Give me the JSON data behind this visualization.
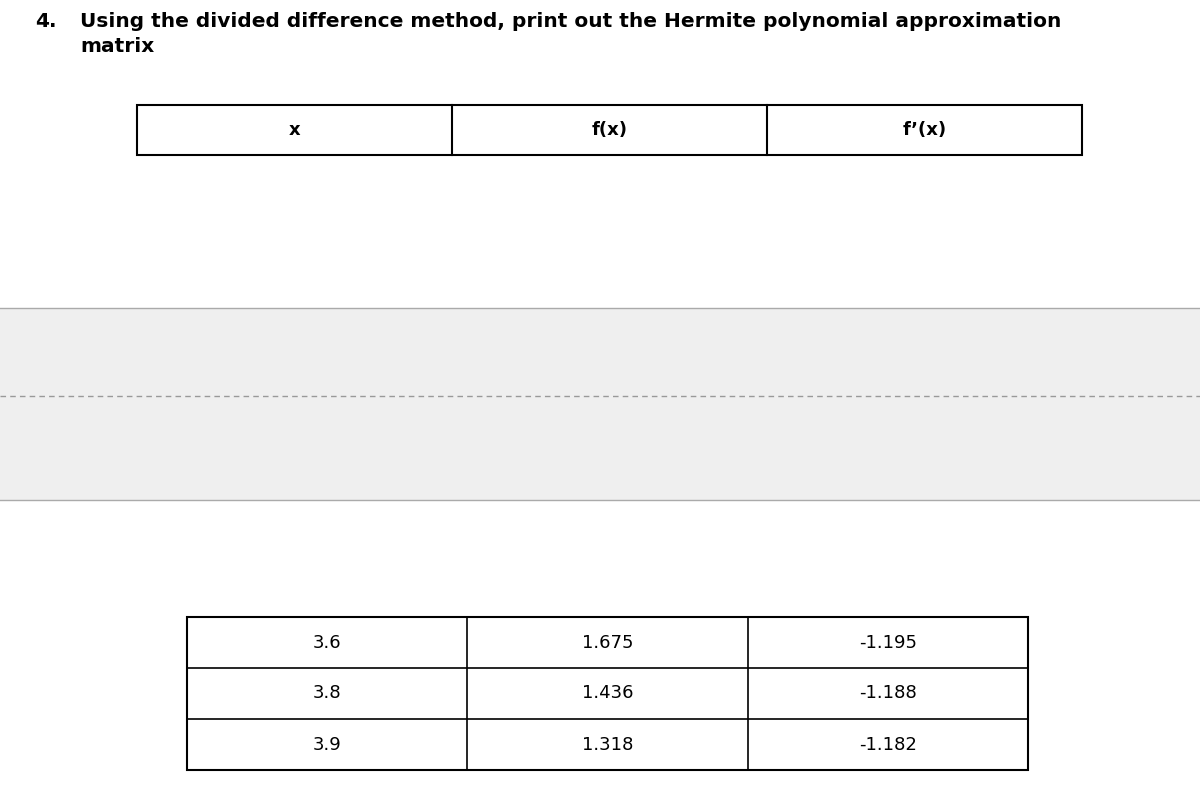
{
  "title_number": "4.",
  "title_line1": "Using the divided difference method, print out the Hermite polynomial approximation",
  "title_line2": "matrix",
  "title_fontsize": 14.5,
  "title_fontfamily": "DejaVu Sans",
  "header_row": [
    "x",
    "f(x)",
    "f’(x)"
  ],
  "data_rows": [
    [
      "3.6",
      "1.675",
      "-1.195"
    ],
    [
      "3.8",
      "1.436",
      "-1.188"
    ],
    [
      "3.9",
      "1.318",
      "-1.182"
    ]
  ],
  "bg_color": "#efefef",
  "white_color": "#ffffff",
  "border_color": "#000000",
  "gray_border_color": "#aaaaaa",
  "dashed_line_color": "#999999",
  "cell_fontsize": 13,
  "header_fontsize": 13
}
